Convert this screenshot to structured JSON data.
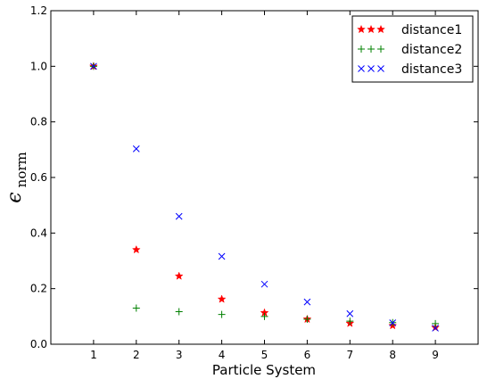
{
  "chart_data": {
    "type": "scatter",
    "xlabel": "Particle System",
    "ylabel": {
      "main": "ϵ",
      "subscript": "norm"
    },
    "xlim": [
      0,
      10
    ],
    "ylim": [
      0,
      1.2
    ],
    "xticks": [
      "1",
      "2",
      "3",
      "4",
      "5",
      "6",
      "7",
      "8",
      "9"
    ],
    "yticks": [
      "0.0",
      "0.2",
      "0.4",
      "0.6",
      "0.8",
      "1.0",
      "1.2"
    ],
    "x": [
      1,
      2,
      3,
      4,
      5,
      6,
      7,
      8,
      9
    ],
    "grid": false,
    "legend_position": "top-right",
    "series": [
      {
        "name": "distance1",
        "marker": "star",
        "color": "#ff0000",
        "legend_glyphs": "★ ★ ★",
        "values": [
          1.0,
          0.34,
          0.245,
          0.162,
          0.113,
          0.09,
          0.075,
          0.067,
          0.06
        ]
      },
      {
        "name": "distance2",
        "marker": "plus",
        "color": "#008000",
        "legend_glyphs": "+ + +",
        "values": [
          1.0,
          0.13,
          0.117,
          0.107,
          0.1,
          0.09,
          0.083,
          0.078,
          0.074
        ]
      },
      {
        "name": "distance3",
        "marker": "x",
        "color": "#0000ff",
        "legend_glyphs": "× × ×",
        "values": [
          1.0,
          0.703,
          0.46,
          0.316,
          0.216,
          0.152,
          0.11,
          0.077,
          0.058
        ]
      }
    ]
  }
}
